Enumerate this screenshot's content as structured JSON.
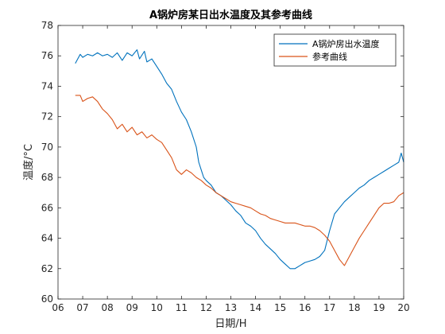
{
  "chart_data": {
    "type": "line",
    "title": "A锅炉房某日出水温度及其参考曲线",
    "xlabel": "日期/H",
    "ylabel": "温度/°C",
    "xlim": [
      6,
      20
    ],
    "ylim": [
      60,
      78
    ],
    "xticks": [
      6,
      7,
      8,
      9,
      10,
      11,
      12,
      13,
      14,
      15,
      16,
      17,
      18,
      19,
      20
    ],
    "xtick_labels": [
      "06",
      "07",
      "08",
      "09",
      "10",
      "11",
      "12",
      "13",
      "14",
      "15",
      "16",
      "17",
      "18",
      "19",
      "20"
    ],
    "yticks": [
      60,
      62,
      64,
      66,
      68,
      70,
      72,
      74,
      76,
      78
    ],
    "ytick_labels": [
      "60",
      "62",
      "64",
      "66",
      "68",
      "70",
      "72",
      "74",
      "76",
      "78"
    ],
    "legend_position": "top-right",
    "grid": false,
    "series": [
      {
        "name": "A锅炉房出水温度",
        "color": "#0072BD",
        "points": [
          [
            6.7,
            75.5
          ],
          [
            6.8,
            75.8
          ],
          [
            6.9,
            76.1
          ],
          [
            7.0,
            75.9
          ],
          [
            7.2,
            76.1
          ],
          [
            7.4,
            76.0
          ],
          [
            7.6,
            76.2
          ],
          [
            7.8,
            76.0
          ],
          [
            8.0,
            76.1
          ],
          [
            8.2,
            75.9
          ],
          [
            8.4,
            76.2
          ],
          [
            8.6,
            75.7
          ],
          [
            8.8,
            76.2
          ],
          [
            9.0,
            76.0
          ],
          [
            9.2,
            76.4
          ],
          [
            9.3,
            75.8
          ],
          [
            9.5,
            76.3
          ],
          [
            9.6,
            75.6
          ],
          [
            9.8,
            75.8
          ],
          [
            10.0,
            75.3
          ],
          [
            10.2,
            74.8
          ],
          [
            10.4,
            74.2
          ],
          [
            10.6,
            73.8
          ],
          [
            10.8,
            73.0
          ],
          [
            11.0,
            72.3
          ],
          [
            11.2,
            71.8
          ],
          [
            11.4,
            71.0
          ],
          [
            11.6,
            70.0
          ],
          [
            11.7,
            69.0
          ],
          [
            11.8,
            68.5
          ],
          [
            11.9,
            68.0
          ],
          [
            12.0,
            67.8
          ],
          [
            12.2,
            67.5
          ],
          [
            12.4,
            67.0
          ],
          [
            12.6,
            66.8
          ],
          [
            12.8,
            66.5
          ],
          [
            13.0,
            66.2
          ],
          [
            13.2,
            65.8
          ],
          [
            13.4,
            65.5
          ],
          [
            13.6,
            65.0
          ],
          [
            13.8,
            64.8
          ],
          [
            14.0,
            64.5
          ],
          [
            14.2,
            64.0
          ],
          [
            14.4,
            63.6
          ],
          [
            14.6,
            63.3
          ],
          [
            14.8,
            63.0
          ],
          [
            15.0,
            62.6
          ],
          [
            15.2,
            62.3
          ],
          [
            15.4,
            62.0
          ],
          [
            15.6,
            62.0
          ],
          [
            15.8,
            62.2
          ],
          [
            16.0,
            62.4
          ],
          [
            16.2,
            62.5
          ],
          [
            16.4,
            62.6
          ],
          [
            16.6,
            62.8
          ],
          [
            16.8,
            63.2
          ],
          [
            17.0,
            64.5
          ],
          [
            17.2,
            65.6
          ],
          [
            17.4,
            66.0
          ],
          [
            17.6,
            66.4
          ],
          [
            17.8,
            66.7
          ],
          [
            18.0,
            67.0
          ],
          [
            18.2,
            67.3
          ],
          [
            18.4,
            67.5
          ],
          [
            18.6,
            67.8
          ],
          [
            18.8,
            68.0
          ],
          [
            19.0,
            68.2
          ],
          [
            19.2,
            68.4
          ],
          [
            19.4,
            68.6
          ],
          [
            19.6,
            68.8
          ],
          [
            19.8,
            69.0
          ],
          [
            19.9,
            69.6
          ],
          [
            20.0,
            69.0
          ]
        ]
      },
      {
        "name": "参考曲线",
        "color": "#D95319",
        "points": [
          [
            6.7,
            73.4
          ],
          [
            6.9,
            73.4
          ],
          [
            7.0,
            73.0
          ],
          [
            7.2,
            73.2
          ],
          [
            7.4,
            73.3
          ],
          [
            7.6,
            73.0
          ],
          [
            7.8,
            72.5
          ],
          [
            8.0,
            72.2
          ],
          [
            8.2,
            71.8
          ],
          [
            8.4,
            71.2
          ],
          [
            8.6,
            71.5
          ],
          [
            8.8,
            71.0
          ],
          [
            9.0,
            71.3
          ],
          [
            9.2,
            70.8
          ],
          [
            9.4,
            71.0
          ],
          [
            9.6,
            70.6
          ],
          [
            9.8,
            70.8
          ],
          [
            10.0,
            70.5
          ],
          [
            10.2,
            70.3
          ],
          [
            10.4,
            69.8
          ],
          [
            10.6,
            69.3
          ],
          [
            10.8,
            68.5
          ],
          [
            11.0,
            68.2
          ],
          [
            11.2,
            68.5
          ],
          [
            11.4,
            68.3
          ],
          [
            11.6,
            68.0
          ],
          [
            11.8,
            67.8
          ],
          [
            12.0,
            67.5
          ],
          [
            12.2,
            67.3
          ],
          [
            12.4,
            67.0
          ],
          [
            12.6,
            66.8
          ],
          [
            12.8,
            66.6
          ],
          [
            13.0,
            66.4
          ],
          [
            13.2,
            66.3
          ],
          [
            13.4,
            66.2
          ],
          [
            13.6,
            66.1
          ],
          [
            13.8,
            66.0
          ],
          [
            14.0,
            65.8
          ],
          [
            14.2,
            65.6
          ],
          [
            14.4,
            65.5
          ],
          [
            14.6,
            65.3
          ],
          [
            14.8,
            65.2
          ],
          [
            15.0,
            65.1
          ],
          [
            15.2,
            65.0
          ],
          [
            15.4,
            65.0
          ],
          [
            15.6,
            65.0
          ],
          [
            15.8,
            64.9
          ],
          [
            16.0,
            64.8
          ],
          [
            16.2,
            64.8
          ],
          [
            16.4,
            64.7
          ],
          [
            16.6,
            64.5
          ],
          [
            16.8,
            64.2
          ],
          [
            17.0,
            63.8
          ],
          [
            17.2,
            63.2
          ],
          [
            17.4,
            62.6
          ],
          [
            17.6,
            62.2
          ],
          [
            17.8,
            62.8
          ],
          [
            18.0,
            63.4
          ],
          [
            18.2,
            64.0
          ],
          [
            18.4,
            64.5
          ],
          [
            18.6,
            65.0
          ],
          [
            18.8,
            65.5
          ],
          [
            19.0,
            66.0
          ],
          [
            19.2,
            66.3
          ],
          [
            19.4,
            66.3
          ],
          [
            19.6,
            66.4
          ],
          [
            19.8,
            66.8
          ],
          [
            20.0,
            67.0
          ]
        ]
      }
    ]
  }
}
